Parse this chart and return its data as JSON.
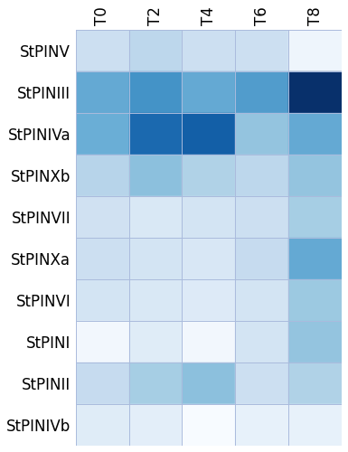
{
  "rows": [
    "StPINV",
    "StPINIII",
    "StPINIVa",
    "StPINXb",
    "StPINVII",
    "StPINXa",
    "StPINVI",
    "StPINI",
    "StPINII",
    "StPINIVb"
  ],
  "cols": [
    "T0",
    "T2",
    "T4",
    "T6",
    "T8"
  ],
  "values": [
    [
      0.22,
      0.28,
      0.22,
      0.22,
      0.05
    ],
    [
      0.52,
      0.62,
      0.52,
      0.58,
      1.0
    ],
    [
      0.5,
      0.78,
      0.82,
      0.4,
      0.52
    ],
    [
      0.3,
      0.42,
      0.32,
      0.28,
      0.4
    ],
    [
      0.2,
      0.15,
      0.18,
      0.22,
      0.35
    ],
    [
      0.22,
      0.18,
      0.16,
      0.25,
      0.52
    ],
    [
      0.18,
      0.15,
      0.13,
      0.18,
      0.38
    ],
    [
      0.03,
      0.12,
      0.03,
      0.18,
      0.4
    ],
    [
      0.25,
      0.35,
      0.42,
      0.22,
      0.32
    ],
    [
      0.12,
      0.1,
      0.0,
      0.08,
      0.08
    ]
  ],
  "colormap": "Blues",
  "row_label_fontsize": 12,
  "col_label_fontsize": 12,
  "col_label_rotation": 90,
  "grid_color": "#aabbdd",
  "grid_linewidth": 0.7,
  "background_color": "#ffffff",
  "fig_width": 3.85,
  "fig_height": 5.0,
  "label_fontweight": "normal"
}
